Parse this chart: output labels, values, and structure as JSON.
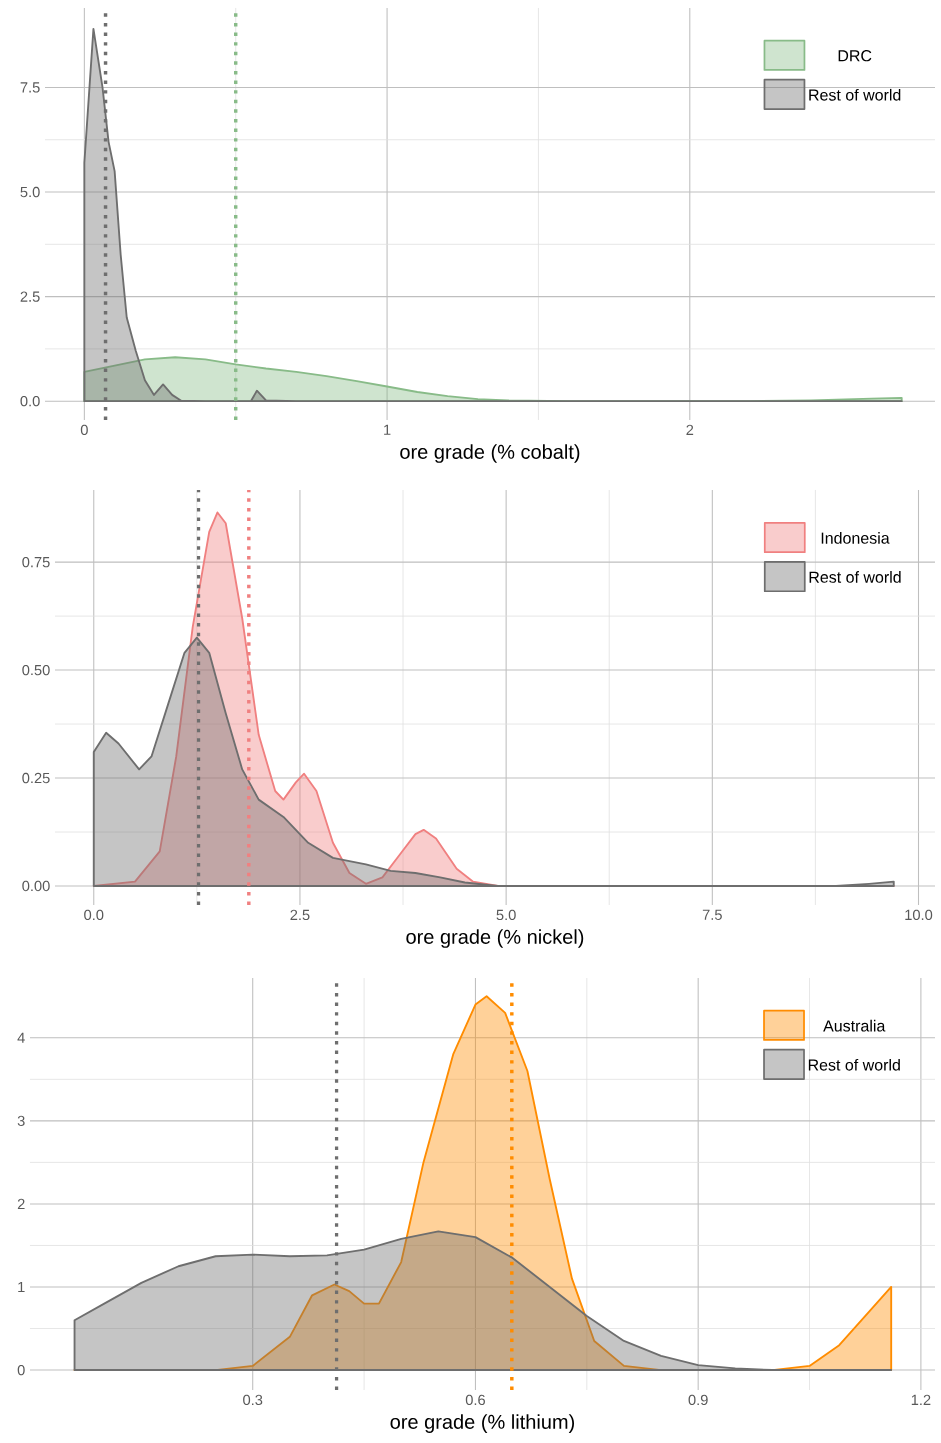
{
  "chart_data": [
    {
      "type": "area",
      "xlabel": "ore grade (% cobalt)",
      "xlim": [
        -0.13,
        2.81
      ],
      "ylim": [
        -0.45,
        9.4
      ],
      "xticks": [
        0,
        1,
        2
      ],
      "yticks": [
        {
          "value": 0,
          "label": "0.0"
        },
        2.5,
        {
          "value": 5,
          "label": "5.0"
        },
        7.5
      ],
      "grid": true,
      "legend": "top right",
      "series": [
        {
          "name": "DRC",
          "color": "#88bb88",
          "x": [
            0,
            0.1,
            0.2,
            0.3,
            0.4,
            0.5,
            0.6,
            0.7,
            0.8,
            0.9,
            1.0,
            1.1,
            1.2,
            1.3,
            1.4,
            1.6,
            2.2,
            2.4,
            2.6,
            2.7
          ],
          "values": [
            0.7,
            0.85,
            1.0,
            1.05,
            1.0,
            0.88,
            0.78,
            0.7,
            0.6,
            0.48,
            0.35,
            0.22,
            0.12,
            0.05,
            0.02,
            0,
            0,
            0.02,
            0.06,
            0.08
          ]
        },
        {
          "name": "Rest of world",
          "color": "#6e6e6e",
          "x": [
            0,
            0.03,
            0.06,
            0.08,
            0.1,
            0.12,
            0.14,
            0.17,
            0.2,
            0.23,
            0.26,
            0.29,
            0.32,
            0.4,
            0.55,
            0.57,
            0.6,
            0.7,
            1.5,
            2.7
          ],
          "values": [
            5.7,
            8.9,
            7.5,
            6.2,
            5.5,
            3.5,
            2.0,
            1.2,
            0.5,
            0.15,
            0.4,
            0.15,
            0.01,
            0,
            0,
            0.25,
            0.02,
            0,
            0,
            0
          ]
        }
      ],
      "ref_lines": [
        {
          "axis": "x",
          "value": 0.07,
          "color": "#6e6e6e",
          "line_style": "dotted"
        },
        {
          "axis": "x",
          "value": 0.5,
          "color": "#88bb88",
          "line_style": "dotted"
        }
      ]
    },
    {
      "type": "area",
      "xlabel": "ore grade (% nickel)",
      "xlim": [
        -0.47,
        10.2
      ],
      "ylim": [
        -0.044,
        0.917
      ],
      "xticks": [
        {
          "value": 0,
          "label": "0.0"
        },
        2.5,
        {
          "value": 5,
          "label": "5.0"
        },
        7.5,
        {
          "value": 10,
          "label": "10.0"
        }
      ],
      "yticks": [
        {
          "value": 0,
          "label": "0.00"
        },
        0.25,
        {
          "value": 0.5,
          "label": "0.50"
        },
        0.75
      ],
      "grid": true,
      "legend": "top right",
      "series": [
        {
          "name": "Indonesia",
          "color": "#f08080",
          "x": [
            0,
            0.5,
            0.8,
            1.0,
            1.2,
            1.4,
            1.5,
            1.6,
            1.8,
            2.0,
            2.2,
            2.3,
            2.45,
            2.55,
            2.7,
            2.9,
            3.1,
            3.3,
            3.5,
            3.7,
            3.9,
            4.0,
            4.15,
            4.4,
            4.6,
            4.9,
            9.7
          ],
          "values": [
            0,
            0.01,
            0.08,
            0.3,
            0.6,
            0.82,
            0.865,
            0.84,
            0.62,
            0.35,
            0.22,
            0.2,
            0.24,
            0.26,
            0.22,
            0.1,
            0.03,
            0.005,
            0.02,
            0.07,
            0.12,
            0.13,
            0.11,
            0.04,
            0.01,
            0,
            0
          ]
        },
        {
          "name": "Rest of world",
          "color": "#6e6e6e",
          "x": [
            0,
            0.15,
            0.3,
            0.55,
            0.7,
            0.9,
            1.1,
            1.25,
            1.4,
            1.6,
            1.8,
            2.0,
            2.3,
            2.6,
            2.9,
            3.3,
            3.6,
            3.9,
            4.2,
            4.5,
            4.9,
            9.0,
            9.4,
            9.7
          ],
          "values": [
            0.31,
            0.355,
            0.33,
            0.27,
            0.3,
            0.42,
            0.54,
            0.575,
            0.54,
            0.4,
            0.27,
            0.2,
            0.16,
            0.1,
            0.065,
            0.05,
            0.035,
            0.03,
            0.02,
            0.008,
            0,
            0,
            0.005,
            0.01
          ]
        }
      ],
      "ref_lines": [
        {
          "axis": "x",
          "value": 1.27,
          "color": "#6e6e6e",
          "line_style": "dotted"
        },
        {
          "axis": "x",
          "value": 1.88,
          "color": "#f08080",
          "line_style": "dotted"
        }
      ]
    },
    {
      "type": "area",
      "xlabel": "ore grade (% lithium)",
      "xlim": [
        0.0,
        1.219
      ],
      "ylim": [
        -0.24,
        4.72
      ],
      "xticks": [
        0.3,
        0.6,
        0.9,
        1.2
      ],
      "yticks": [
        0,
        1,
        2,
        3,
        4
      ],
      "grid": true,
      "legend": "top right",
      "series": [
        {
          "name": "Australia",
          "color": "#ff8c00",
          "x": [
            0.06,
            0.25,
            0.3,
            0.35,
            0.38,
            0.41,
            0.43,
            0.45,
            0.47,
            0.5,
            0.53,
            0.57,
            0.6,
            0.615,
            0.64,
            0.67,
            0.7,
            0.73,
            0.76,
            0.8,
            0.85,
            1.0,
            1.05,
            1.09,
            1.13,
            1.16
          ],
          "values": [
            0,
            0,
            0.05,
            0.4,
            0.9,
            1.03,
            0.95,
            0.8,
            0.8,
            1.3,
            2.5,
            3.8,
            4.4,
            4.5,
            4.3,
            3.6,
            2.3,
            1.1,
            0.35,
            0.05,
            0,
            0,
            0.05,
            0.3,
            0.7,
            1.0
          ]
        },
        {
          "name": "Rest of world",
          "color": "#6e6e6e",
          "x": [
            0.06,
            0.1,
            0.15,
            0.2,
            0.25,
            0.3,
            0.35,
            0.4,
            0.45,
            0.5,
            0.55,
            0.6,
            0.65,
            0.7,
            0.75,
            0.8,
            0.85,
            0.9,
            0.95,
            1.0,
            1.16
          ],
          "values": [
            0.6,
            0.8,
            1.05,
            1.25,
            1.37,
            1.39,
            1.37,
            1.38,
            1.45,
            1.58,
            1.67,
            1.6,
            1.35,
            1.0,
            0.65,
            0.35,
            0.17,
            0.06,
            0.02,
            0,
            0
          ]
        }
      ],
      "ref_lines": [
        {
          "axis": "x",
          "value": 0.413,
          "color": "#6e6e6e",
          "line_style": "dotted"
        },
        {
          "axis": "x",
          "value": 0.649,
          "color": "#ff8c00",
          "line_style": "dotted"
        }
      ]
    }
  ]
}
